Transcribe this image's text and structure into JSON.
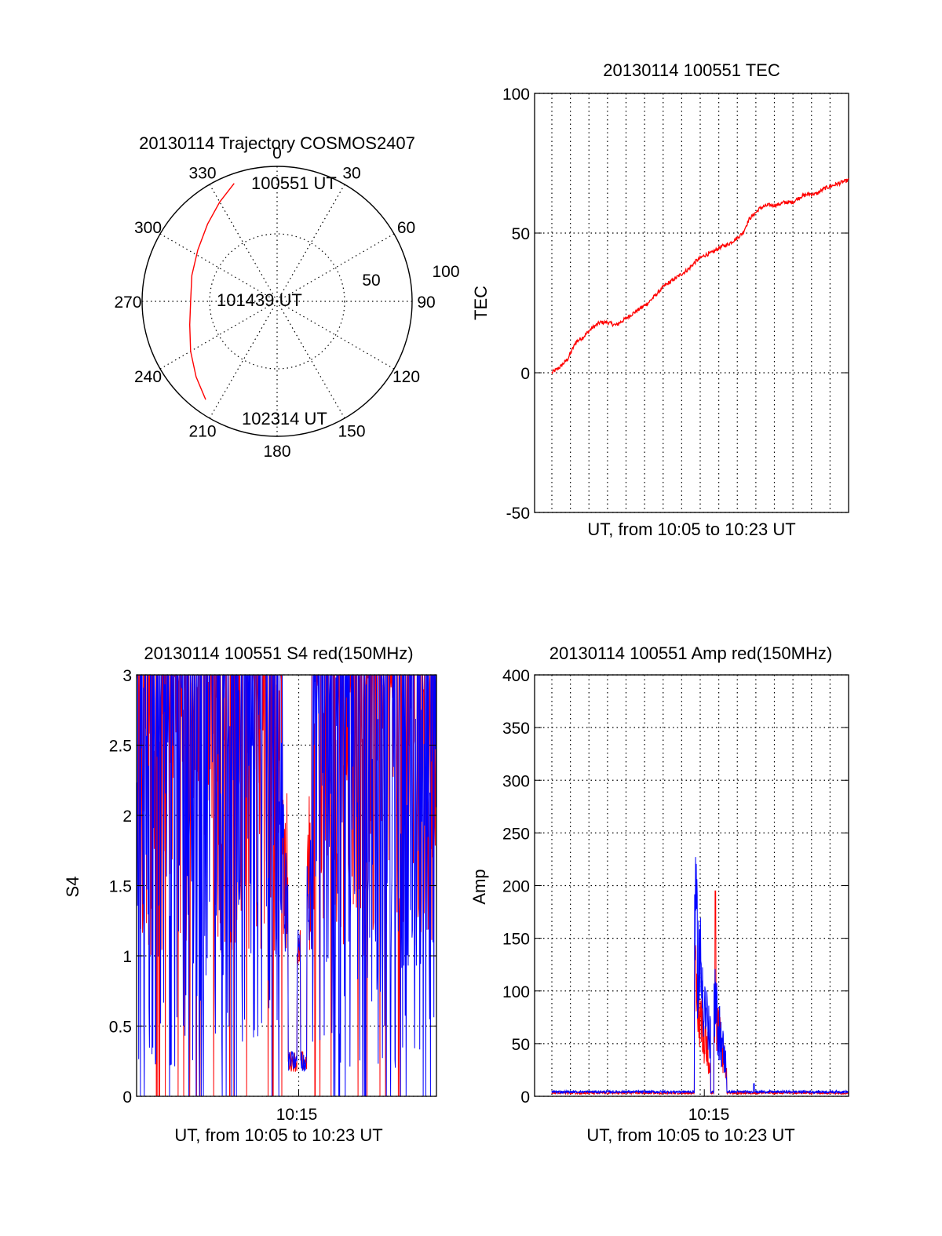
{
  "chart_data": [
    {
      "type": "polar",
      "title": "20130114 Trajectory COSMOS2407",
      "angle_labels": [
        "0",
        "30",
        "60",
        "90",
        "120",
        "150",
        "180",
        "210",
        "240",
        "270",
        "300",
        "330"
      ],
      "radius_labels": [
        "50",
        "100"
      ],
      "angle_direction": "clockwise, 0 at top",
      "grid": true,
      "series": [
        {
          "color": "#ff0000",
          "points": [
            {
              "az": 340,
              "r": 93
            },
            {
              "az": 330,
              "r": 85
            },
            {
              "az": 318,
              "r": 77
            },
            {
              "az": 303,
              "r": 70
            },
            {
              "az": 287,
              "r": 66
            },
            {
              "az": 271,
              "r": 64
            },
            {
              "az": 255,
              "r": 67
            },
            {
              "az": 240,
              "r": 74
            },
            {
              "az": 227,
              "r": 82
            },
            {
              "az": 216,
              "r": 90
            }
          ]
        }
      ],
      "annotations": [
        "100551 UT",
        "101439 UT",
        "102314 UT"
      ]
    },
    {
      "type": "line",
      "title": "20130114 100551 TEC",
      "xlabel": "UT, from 10:05 to 10:23 UT",
      "ylabel": "TEC",
      "xlim": [
        0,
        18.5
      ],
      "ylim": [
        -50,
        100
      ],
      "yticks": [
        "-50",
        "0",
        "50",
        "100"
      ],
      "grid": true,
      "series": [
        {
          "color": "#ff0000",
          "x": [
            0,
            0.5,
            1,
            1.5,
            2,
            2.5,
            3,
            3.5,
            4,
            4.5,
            5,
            5.5,
            6,
            6.5,
            7,
            7.5,
            8,
            8.5,
            9,
            9.5,
            10,
            10.5,
            11,
            11.5,
            11.9,
            12.3,
            13,
            13.5,
            14,
            14.5,
            15,
            15.5,
            16,
            16.5,
            17,
            17.5,
            18,
            18.5
          ],
          "y": [
            0,
            2,
            5,
            11,
            13,
            16,
            18,
            18,
            17,
            19,
            21,
            23,
            25,
            28,
            31,
            33,
            35,
            37,
            40,
            42,
            43,
            45,
            46,
            48,
            50,
            55,
            59,
            60,
            60,
            61,
            61,
            63,
            64,
            64,
            66,
            67,
            68,
            69
          ]
        }
      ]
    },
    {
      "type": "line",
      "title": "20130114 100551 S4 red(150MHz)",
      "xlabel": "UT, from 10:05 to 10:23 UT",
      "ylabel": "S4",
      "xlim": [
        0,
        18.5
      ],
      "ylim": [
        0,
        3
      ],
      "xticks": [
        {
          "x": 10,
          "label": "10:15"
        }
      ],
      "yticks": [
        "0",
        "0.5",
        "1",
        "1.5",
        "2",
        "2.5",
        "3"
      ],
      "grid": true,
      "series": [
        {
          "color": "#ff0000",
          "base": 2.5,
          "range": 1.5,
          "dip": [
            9.0,
            10.8
          ],
          "dip_level": 0.25
        },
        {
          "color": "#0000ff",
          "base": 2.2,
          "range": 2.0,
          "dip": [
            9.0,
            10.8
          ],
          "dip_level": 0.25
        }
      ]
    },
    {
      "type": "line",
      "title": "20130114 100551 Amp red(150MHz)",
      "xlabel": "UT, from 10:05 to 10:23 UT",
      "ylabel": "Amp",
      "xlim": [
        0,
        18.5
      ],
      "ylim": [
        0,
        400
      ],
      "xticks": [
        {
          "x": 10,
          "label": "10:15"
        }
      ],
      "yticks": [
        "0",
        "50",
        "100",
        "150",
        "200",
        "250",
        "300",
        "350",
        "400"
      ],
      "grid": true,
      "series": [
        {
          "color": "#ff0000",
          "burst": [
            [
              8.9,
              9.9,
              150
            ],
            [
              10.1,
              10.9,
              120
            ]
          ],
          "spike": [
            10.2,
            195
          ],
          "baseline": 2
        },
        {
          "color": "#0000ff",
          "burst": [
            [
              8.9,
              9.9,
              240
            ],
            [
              10.1,
              10.9,
              130
            ]
          ],
          "spike": [
            12.6,
            12
          ],
          "baseline": 3
        }
      ]
    }
  ]
}
